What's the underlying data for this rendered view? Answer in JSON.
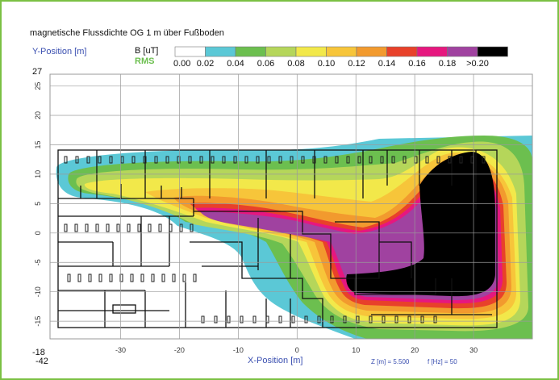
{
  "chart_data": {
    "type": "heatmap",
    "title": "magnetische Flussdichte OG 1 m über Fußboden",
    "xlabel": "X-Position [m]",
    "ylabel": "Y-Position [m]",
    "xlim": [
      -42,
      40
    ],
    "ylim": [
      -18,
      27
    ],
    "x_ticks": [
      -30,
      -20,
      -10,
      0,
      10,
      20,
      30
    ],
    "y_ticks": [
      -15,
      -10,
      -5,
      0,
      5,
      10,
      15,
      20,
      25
    ],
    "y_top_label": "27",
    "y_bottom_label": "-18",
    "x_left_label": "-42",
    "grid": true,
    "legend": {
      "unit": "B [uT]",
      "quantity": "RMS",
      "labels": [
        "0.00",
        "0.02",
        "0.04",
        "0.06",
        "0.08",
        "0.10",
        "0.12",
        "0.14",
        "0.16",
        "0.18",
        ">0.20"
      ],
      "colors": [
        "#ffffff",
        "#5bc8d6",
        "#6cbf4f",
        "#b5d65a",
        "#f2e84a",
        "#f7c53a",
        "#f29a2e",
        "#e8412a",
        "#e6177f",
        "#a042a0",
        "#000000"
      ]
    },
    "annotations": {
      "z": "Z [m] = 5.500",
      "f": "f [Hz] = 50"
    }
  }
}
